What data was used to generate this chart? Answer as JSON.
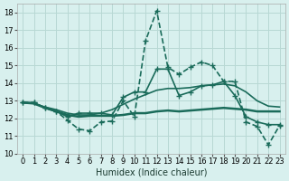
{
  "xlabel": "Humidex (Indice chaleur)",
  "ylabel": "",
  "xlim": [
    -0.5,
    23.5
  ],
  "ylim": [
    10,
    18.5
  ],
  "yticks": [
    10,
    11,
    12,
    13,
    14,
    15,
    16,
    17,
    18
  ],
  "xticks": [
    0,
    1,
    2,
    3,
    4,
    5,
    6,
    7,
    8,
    9,
    10,
    11,
    12,
    13,
    14,
    15,
    16,
    17,
    18,
    19,
    20,
    21,
    22,
    23
  ],
  "bg_color": "#d8f0ee",
  "grid_color": "#b8d8d4",
  "line_color": "#1a6b5a",
  "series": [
    {
      "x": [
        0,
        1,
        2,
        3,
        4,
        5,
        6,
        7,
        8,
        9,
        10,
        11,
        12,
        13,
        14,
        15,
        16,
        17,
        18,
        19,
        20,
        21,
        22,
        23
      ],
      "y": [
        12.9,
        12.9,
        12.6,
        12.4,
        11.9,
        11.4,
        11.3,
        11.8,
        11.85,
        13.0,
        12.1,
        16.4,
        18.1,
        14.9,
        14.5,
        14.9,
        15.2,
        15.0,
        14.1,
        14.1,
        11.8,
        11.55,
        10.5,
        11.6
      ],
      "style": "--",
      "marker": "+",
      "markersize": 5,
      "linewidth": 1.2
    },
    {
      "x": [
        0,
        1,
        2,
        3,
        4,
        5,
        6,
        7,
        8,
        9,
        10,
        11,
        12,
        13,
        14,
        15,
        16,
        17,
        18,
        19,
        20,
        21,
        22,
        23
      ],
      "y": [
        12.9,
        12.9,
        12.6,
        12.4,
        12.1,
        12.3,
        12.3,
        12.3,
        12.2,
        13.2,
        13.5,
        13.5,
        14.8,
        14.8,
        13.3,
        13.5,
        13.85,
        13.9,
        14.1,
        13.3,
        12.1,
        11.8,
        11.65,
        11.65
      ],
      "style": "-",
      "marker": "+",
      "markersize": 5,
      "linewidth": 1.2
    },
    {
      "x": [
        0,
        1,
        2,
        3,
        4,
        5,
        6,
        7,
        8,
        9,
        10,
        11,
        12,
        13,
        14,
        15,
        16,
        17,
        18,
        19,
        20,
        21,
        22,
        23
      ],
      "y": [
        12.9,
        12.85,
        12.6,
        12.4,
        12.2,
        12.1,
        12.15,
        12.15,
        12.15,
        12.2,
        12.3,
        12.3,
        12.4,
        12.45,
        12.4,
        12.45,
        12.5,
        12.55,
        12.6,
        12.55,
        12.5,
        12.4,
        12.4,
        12.4
      ],
      "style": "-",
      "marker": null,
      "markersize": 0,
      "linewidth": 1.8
    },
    {
      "x": [
        0,
        1,
        2,
        3,
        4,
        5,
        6,
        7,
        8,
        9,
        10,
        11,
        12,
        13,
        14,
        15,
        16,
        17,
        18,
        19,
        20,
        21,
        22,
        23
      ],
      "y": [
        12.9,
        12.85,
        12.65,
        12.5,
        12.3,
        12.2,
        12.2,
        12.3,
        12.5,
        12.8,
        13.1,
        13.35,
        13.6,
        13.7,
        13.7,
        13.75,
        13.85,
        13.9,
        13.95,
        13.85,
        13.5,
        13.0,
        12.7,
        12.65
      ],
      "style": "-",
      "marker": null,
      "markersize": 0,
      "linewidth": 1.2
    }
  ]
}
